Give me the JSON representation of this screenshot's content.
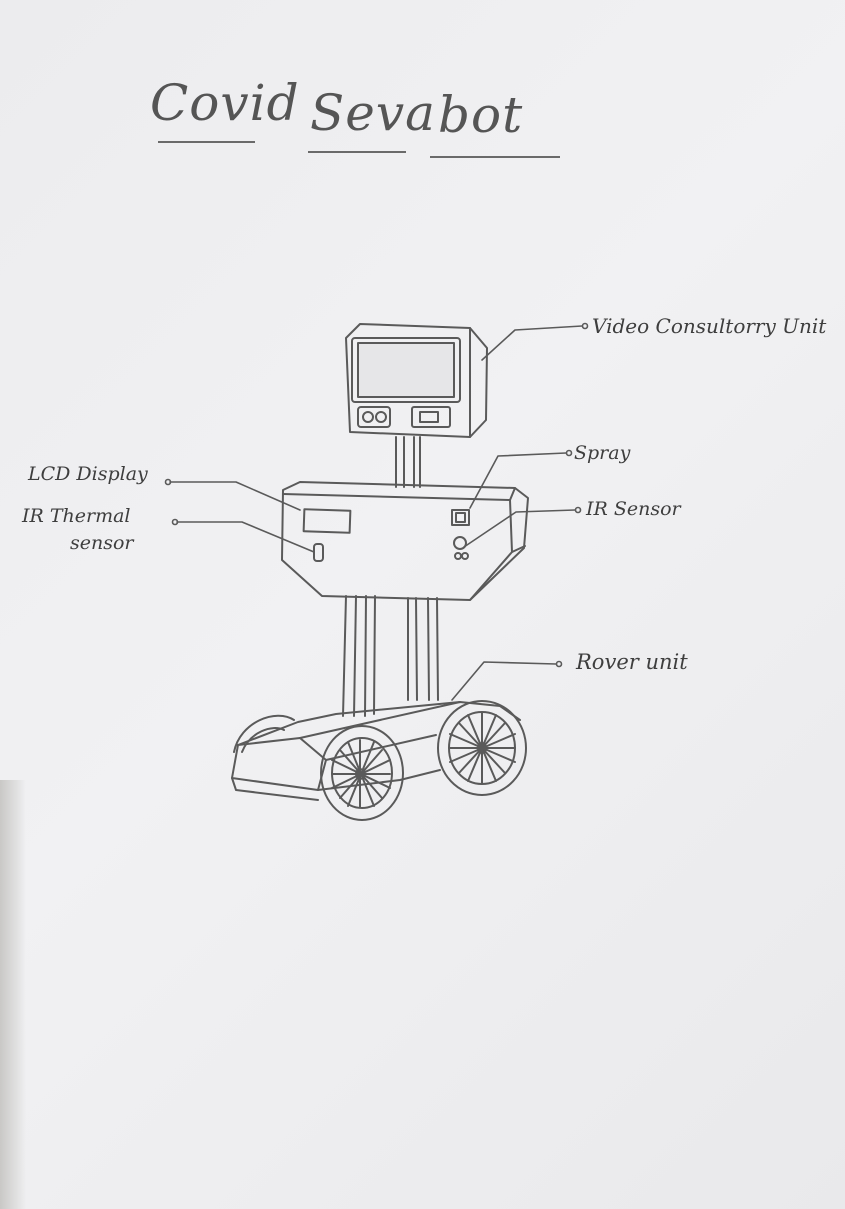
{
  "title": {
    "word1": "Covid",
    "word2": "Seva",
    "word3": "bot"
  },
  "labels": {
    "video_unit": "Video Consultorry Unit",
    "spray": "Spray",
    "lcd_display": "LCD Display",
    "ir_thermal_line1": "IR Thermal",
    "ir_thermal_line2": "sensor",
    "ir_sensor": "IR Sensor",
    "rover_unit": "Rover unit"
  },
  "colors": {
    "pencil": "#5a5a5a",
    "paper": "#efeff1"
  }
}
